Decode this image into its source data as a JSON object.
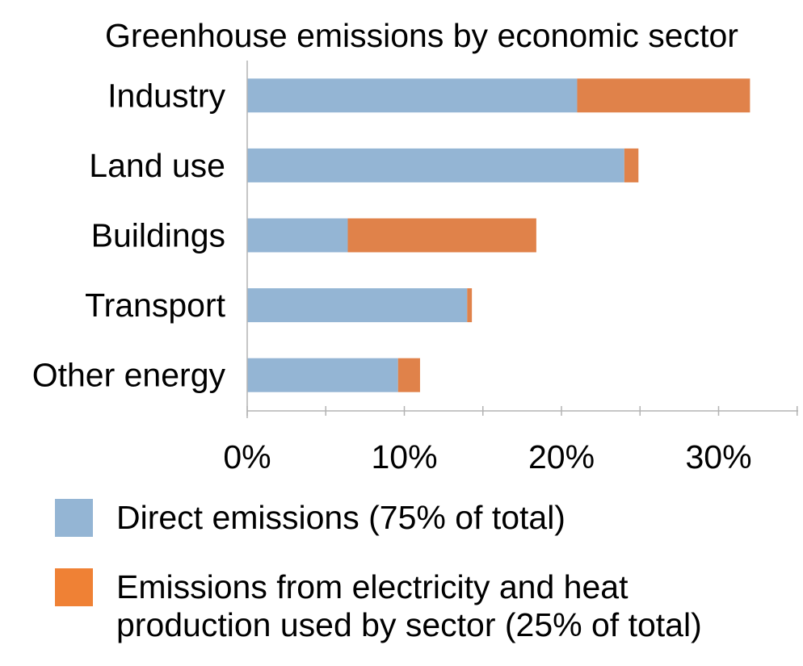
{
  "chart_data": {
    "type": "bar",
    "orientation": "horizontal",
    "stacked": true,
    "title": "Greenhouse emissions by economic sector",
    "categories": [
      "Industry",
      "Land use",
      "Buildings",
      "Transport",
      "Other energy"
    ],
    "series": [
      {
        "name": "Direct emissions (75% of total)",
        "color": "#94b5d4",
        "values": [
          21,
          24,
          6.4,
          14,
          9.6
        ]
      },
      {
        "name": "Emissions from electricity and heat production used by sector (25% of total)",
        "color": "#e0824a",
        "values": [
          11,
          0.9,
          12,
          0.3,
          1.4
        ]
      }
    ],
    "xlim": [
      0,
      35
    ],
    "xticks": [
      0,
      10,
      20,
      30
    ],
    "xtick_labels": [
      "0%",
      "10%",
      "20%",
      "30%"
    ],
    "xlabel": "",
    "ylabel": "",
    "grid": false,
    "legend": "bottom"
  },
  "legend_swatch_colors": [
    "#94b5d4",
    "#ef8135"
  ]
}
